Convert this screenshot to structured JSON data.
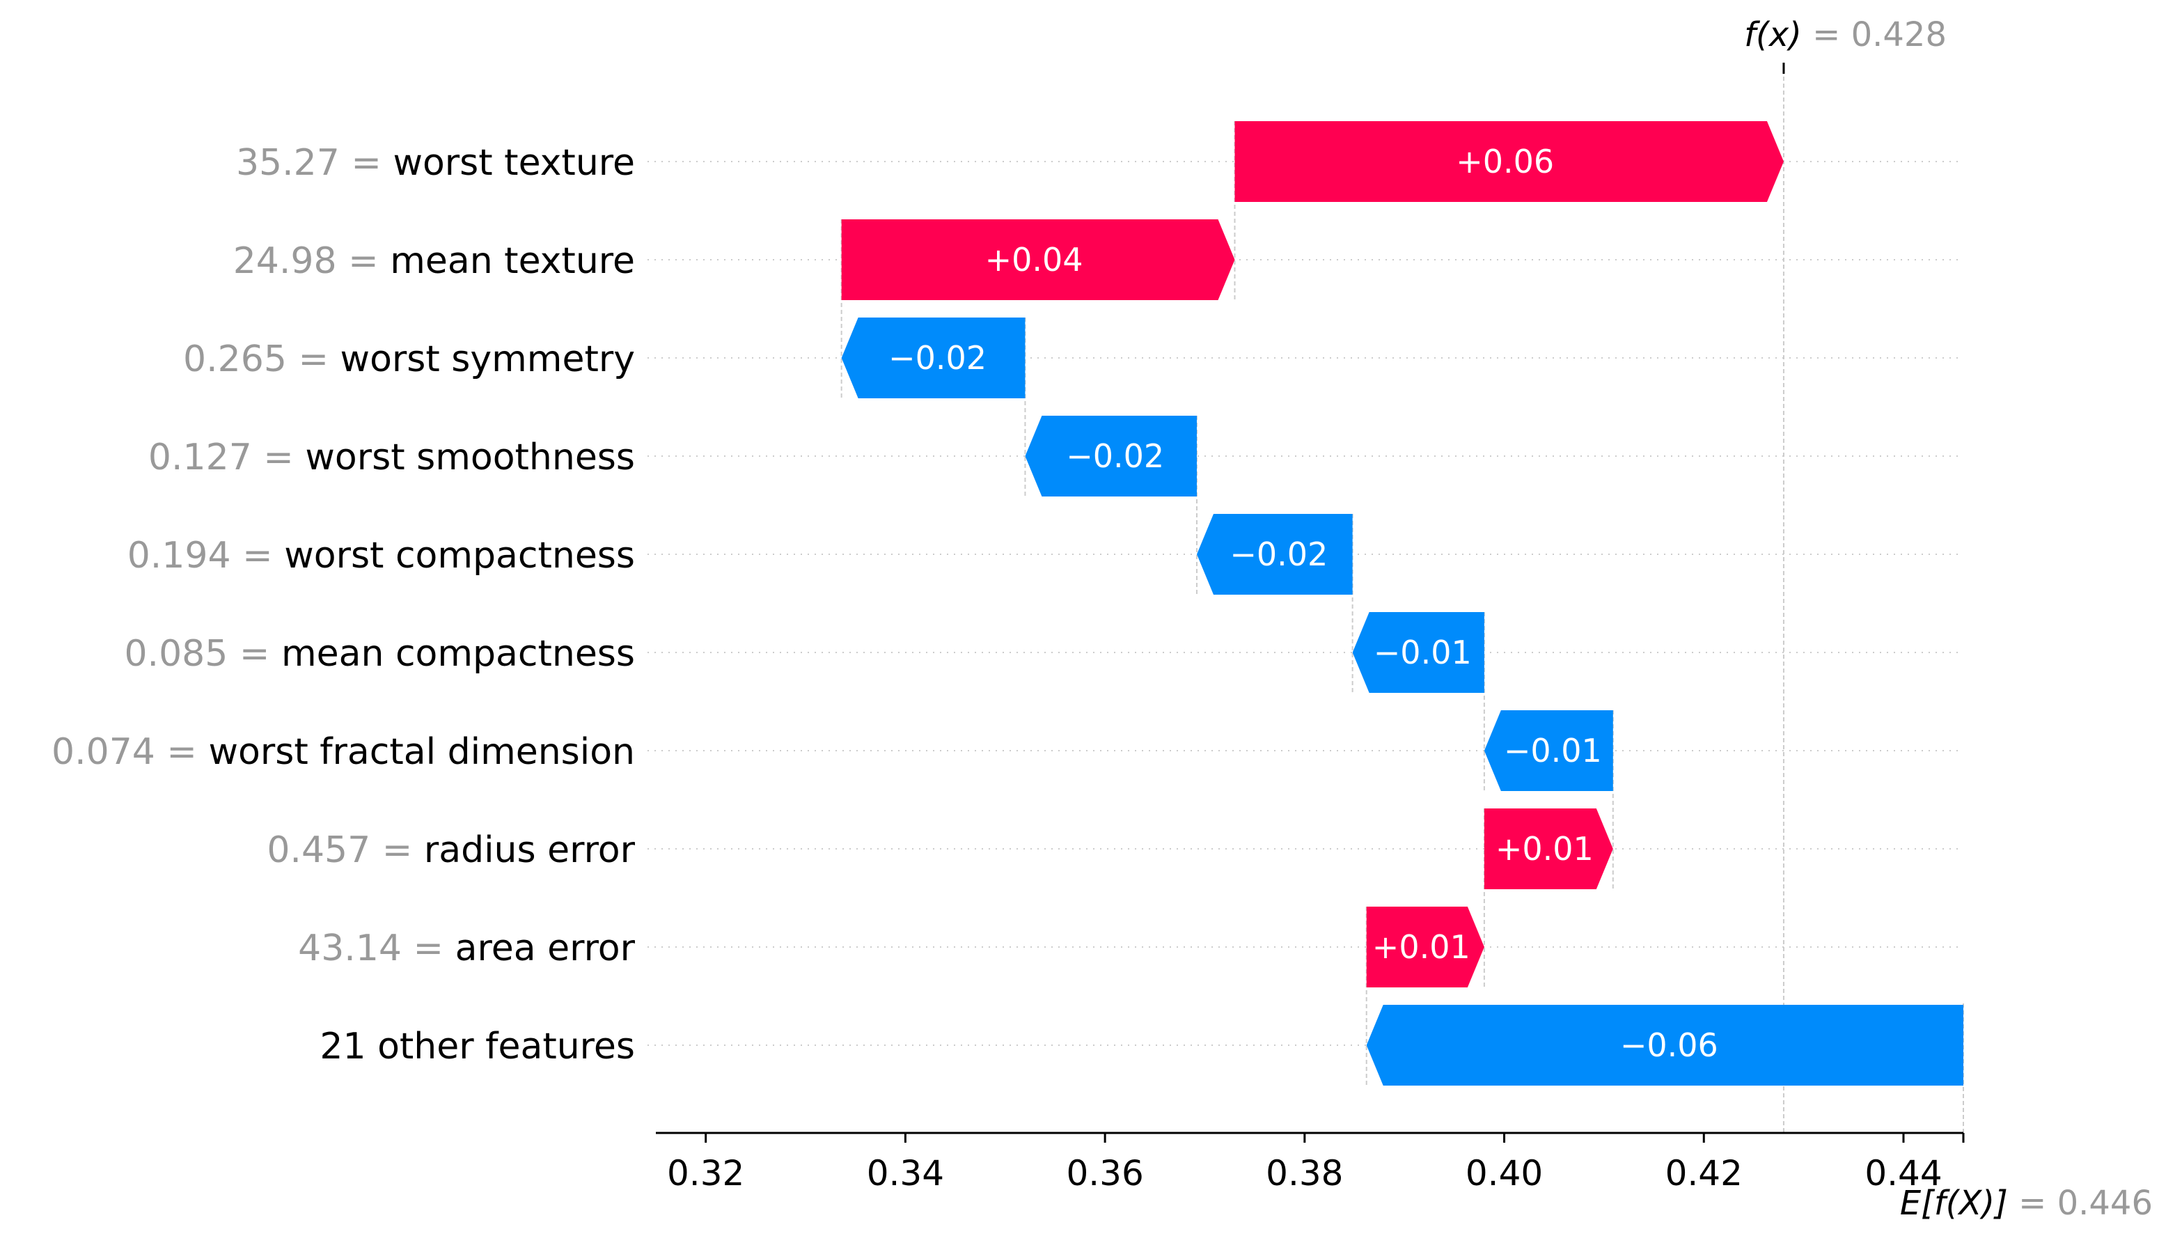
{
  "chart_data": {
    "type": "waterfall",
    "base_value": 0.446,
    "output_value": 0.428,
    "base_label_prefix": "E[f(X)]",
    "base_label_value": " = 0.446",
    "output_label_prefix": "f(x)",
    "output_label_value": " = 0.428",
    "xlim": [
      0.315,
      0.446
    ],
    "x_ticks": [
      0.32,
      0.34,
      0.36,
      0.38,
      0.4,
      0.42,
      0.44
    ],
    "x_tick_labels": [
      "0.32",
      "0.34",
      "0.36",
      "0.38",
      "0.40",
      "0.42",
      "0.44"
    ],
    "features": [
      {
        "value_text": "35.27 = ",
        "name": "worst texture",
        "start": 0.373,
        "end": 0.428,
        "label": "+0.06"
      },
      {
        "value_text": "24.98 = ",
        "name": "mean texture",
        "start": 0.3336,
        "end": 0.373,
        "label": "+0.04"
      },
      {
        "value_text": "0.265 = ",
        "name": "worst symmetry",
        "start": 0.352,
        "end": 0.3336,
        "label": "−0.02"
      },
      {
        "value_text": "0.127 = ",
        "name": "worst smoothness",
        "start": 0.3692,
        "end": 0.352,
        "label": "−0.02"
      },
      {
        "value_text": "0.194 = ",
        "name": "worst compactness",
        "start": 0.3848,
        "end": 0.3692,
        "label": "−0.02"
      },
      {
        "value_text": "0.085 = ",
        "name": "mean compactness",
        "start": 0.398,
        "end": 0.3848,
        "label": "−0.01"
      },
      {
        "value_text": "0.074 = ",
        "name": "worst fractal dimension",
        "start": 0.4109,
        "end": 0.398,
        "label": "−0.01"
      },
      {
        "value_text": "0.457 = ",
        "name": "radius error",
        "start": 0.398,
        "end": 0.4109,
        "label": "+0.01"
      },
      {
        "value_text": "43.14 = ",
        "name": "area error",
        "start": 0.3862,
        "end": 0.398,
        "label": "+0.01"
      },
      {
        "value_text": "",
        "name": "21 other features",
        "start": 0.446,
        "end": 0.3862,
        "label": "−0.06"
      }
    ],
    "colors": {
      "positive": "#ff0051",
      "negative": "#008bfb",
      "feature_value_text": "#999999",
      "axis": "#000000",
      "guide": "#cccccc"
    },
    "grid": "dotted horizontal guides per row"
  }
}
